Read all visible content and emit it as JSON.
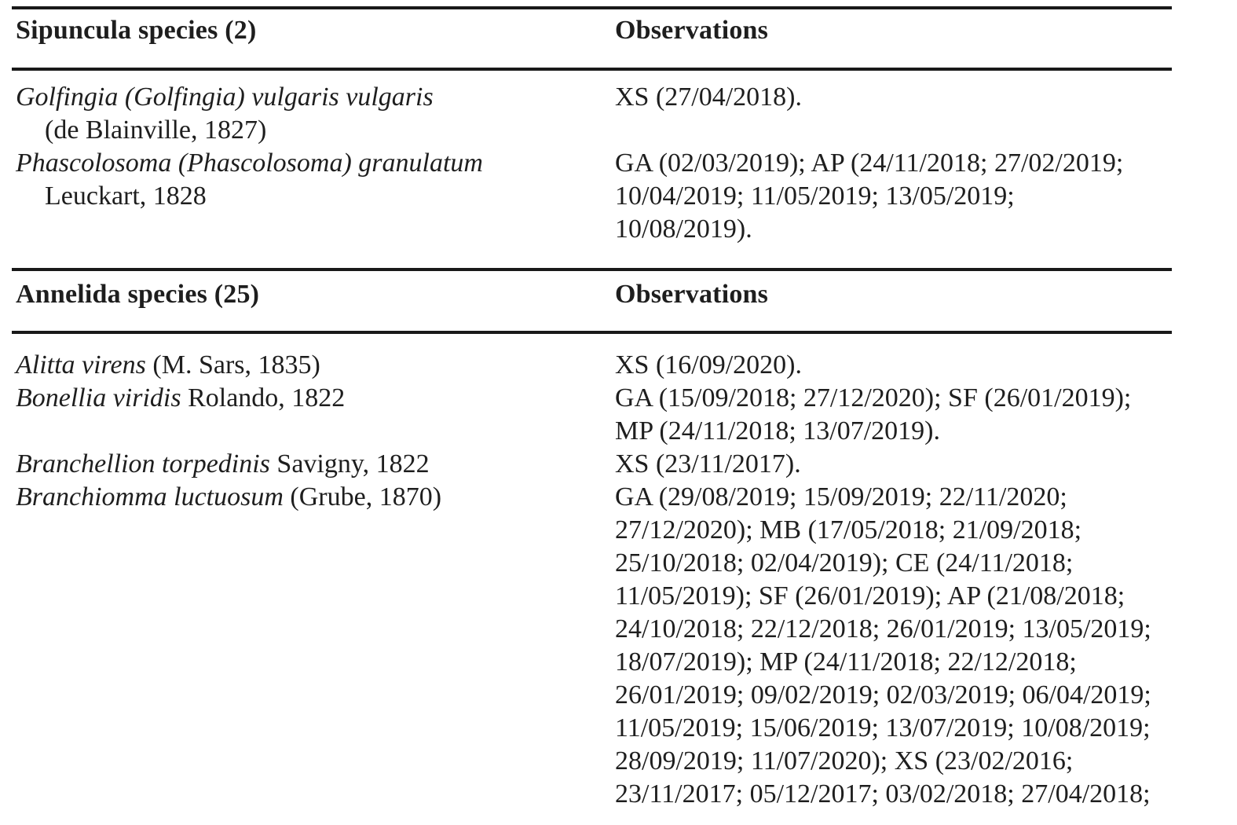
{
  "page": {
    "background": "#ffffff",
    "text_color": "#1e1e1e",
    "rule_color": "#191919"
  },
  "sections": [
    {
      "species_header": "Sipuncula species (2)",
      "observations_header": "Observations",
      "rows": [
        {
          "species_line1_italic": "Golfingia (Golfingia) vulgaris vulgaris",
          "species_line2": "(de Blainville, 1827)",
          "observation_lines": [
            "XS (27/04/2018)."
          ]
        },
        {
          "species_line1_italic": "Phascolosoma (Phascolosoma) granulatum",
          "species_line2": "Leuckart, 1828",
          "observation_lines": [
            "GA (02/03/2019); AP (24/11/2018; 27/02/2019;",
            "10/04/2019; 11/05/2019; 13/05/2019;",
            "10/08/2019)."
          ]
        }
      ]
    },
    {
      "species_header": "Annelida species (25)",
      "observations_header": "Observations",
      "rows": [
        {
          "species_italic": "Alitta virens",
          "species_authority": " (M. Sars, 1835)",
          "observation_lines": [
            "XS (16/09/2020)."
          ]
        },
        {
          "species_italic": "Bonellia viridis",
          "species_authority": " Rolando, 1822",
          "observation_lines": [
            "GA (15/09/2018; 27/12/2020); SF (26/01/2019);",
            "MP (24/11/2018; 13/07/2019)."
          ]
        },
        {
          "species_italic": "Branchellion torpedinis",
          "species_authority": " Savigny, 1822",
          "observation_lines": [
            "XS (23/11/2017)."
          ]
        },
        {
          "species_italic": "Branchiomma luctuosum",
          "species_authority": " (Grube, 1870)",
          "observation_lines": [
            "GA (29/08/2019; 15/09/2019; 22/11/2020;",
            "27/12/2020); MB (17/05/2018; 21/09/2018;",
            "25/10/2018; 02/04/2019); CE (24/11/2018;",
            "11/05/2019); SF (26/01/2019); AP (21/08/2018;",
            "24/10/2018; 22/12/2018; 26/01/2019; 13/05/2019;",
            "18/07/2019); MP (24/11/2018; 22/12/2018;",
            "26/01/2019; 09/02/2019; 02/03/2019; 06/04/2019;",
            "11/05/2019; 15/06/2019; 13/07/2019; 10/08/2019;",
            "28/09/2019; 11/07/2020); XS (23/02/2016;",
            "23/11/2017; 05/12/2017; 03/02/2018; 27/04/2018;"
          ]
        }
      ]
    }
  ]
}
